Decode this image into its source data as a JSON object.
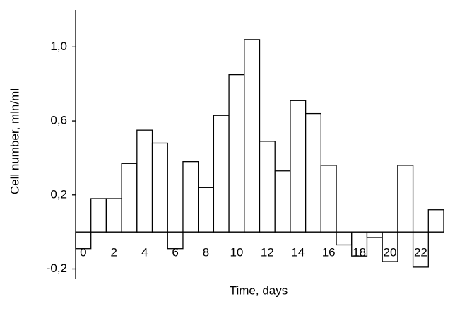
{
  "chart_data": {
    "type": "bar",
    "x": [
      0,
      1,
      2,
      3,
      4,
      5,
      6,
      7,
      8,
      9,
      10,
      11,
      12,
      13,
      14,
      15,
      16,
      17,
      18,
      19,
      20,
      21,
      22,
      23
    ],
    "values": [
      -0.09,
      0.18,
      0.18,
      0.37,
      0.55,
      0.48,
      -0.09,
      0.38,
      0.24,
      0.63,
      0.85,
      1.04,
      0.49,
      0.33,
      0.71,
      0.64,
      0.36,
      -0.07,
      -0.13,
      -0.03,
      -0.16,
      0.36,
      -0.19,
      0.12
    ],
    "xlim": [
      -0.5,
      23.5
    ],
    "xticks": [
      0,
      2,
      4,
      6,
      8,
      10,
      12,
      14,
      16,
      18,
      20,
      22
    ],
    "ylim": [
      -0.2,
      1.2
    ],
    "yticks": [
      {
        "value": -0.2,
        "label": "-0,2"
      },
      {
        "value": 0.2,
        "label": "0,2"
      },
      {
        "value": 0.6,
        "label": "0,6"
      },
      {
        "value": 1.0,
        "label": "1,0"
      }
    ],
    "xlabel": "Time, days",
    "ylabel": "Cell number, mln/ml",
    "color": "#ffffff",
    "edgecolor": "#000000"
  }
}
